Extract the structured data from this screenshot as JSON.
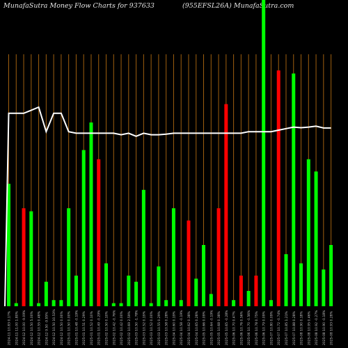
{
  "header": {
    "left_title": "MunafaSutra  Money Flow  Charts for 937633",
    "right_title": "(955EFSL26A) MunafaSutra.com"
  },
  "colors": {
    "background": "#000000",
    "up": "#00ff00",
    "down": "#ff0000",
    "grid": "#a0600f",
    "line": "#ffffff",
    "label": "#c8c8c8"
  },
  "chart_data": {
    "type": "bar",
    "title": "MunafaSutra  Money Flow  Charts for 937633",
    "subtitle": "(955EFSL26A) MunafaSutra.com",
    "ylim": [
      0,
      100
    ],
    "grid": true,
    "categories": [
      "2024-11 10.83 0.17%",
      "2024-11 11.00 1.80%",
      "2024-12 10.00 -9.09%",
      "2024-12 10.50 5.00%",
      "2024-12 10.55 0.48%",
      "2024-12 9.50 -9.95%",
      "2024-12 10.50 10.53%",
      "2024-12 10.50 0.00%",
      "2025-01 10.50 0.00%",
      "2025-01 10.48 -0.19%",
      "2025-01 10.51 0.29%",
      "2025-01 10.52 0.10%",
      "2025-01 10.49 -0.29%",
      "2025-02 10.50 0.10%",
      "2025-02 10.42 -0.76%",
      "2025-02 10.42 0.00%",
      "2025-02 10.69 2.59%",
      "2025-03 10.50 -1.78%",
      "2025-03 10.52 0.19%",
      "2025-03 10.52 0.00%",
      "2025-03 10.55 0.29%",
      "2025-03 10.58 0.28%",
      "2025-04 10.60 0.19%",
      "2025-04 10.58 -0.19%",
      "2025-04 10.62 0.38%",
      "2025-04 10.65 0.28%",
      "2025-05 10.66 0.09%",
      "2025-05 10.64 -0.19%",
      "2025-05 10.68 0.38%",
      "2025-05 10.65 -0.28%",
      "2025-06 10.70 0.47%",
      "2025-06 10.76 0.56%",
      "2025-06 10.70 -0.56%",
      "2025-06 10.78 0.75%",
      "2025-06 10.79 0.09%",
      "2025-07 10.80 0.09%",
      "2025-07 10.72 -0.74%",
      "2025-07 10.85 1.21%",
      "2025-07 10.88 0.28%",
      "2025-08 10.90 0.18%",
      "2025-08 10.95 0.46%",
      "2025-08 10.92 -0.27%",
      "2025-08 10.90 -0.18%",
      "2025-08 10.93 0.28%"
    ],
    "series": [
      {
        "colors": [
          "up",
          "up",
          "down",
          "up",
          "up",
          "up",
          "up",
          "up",
          "up",
          "up",
          "up",
          "up",
          "down",
          "up",
          "up",
          "up",
          "up",
          "up",
          "up",
          "up",
          "up",
          "up",
          "up",
          "up",
          "down",
          "up",
          "up",
          "up",
          "down",
          "down",
          "up",
          "down",
          "up",
          "down",
          "up",
          "up",
          "down",
          "up",
          "up",
          "up",
          "up",
          "up",
          "up",
          "up"
        ],
        "values": [
          40,
          1,
          32,
          31,
          1,
          8,
          2,
          2,
          32,
          10,
          51,
          60,
          48,
          14,
          1,
          1,
          10,
          8,
          38,
          1,
          13,
          2,
          32,
          2,
          28,
          9,
          20,
          4,
          32,
          66,
          2,
          10,
          5,
          10,
          100,
          2,
          77,
          17,
          76,
          14,
          48,
          44,
          12,
          20
        ]
      },
      {
        "type": "line",
        "values": [
          63,
          63,
          63,
          64,
          65,
          57,
          63,
          63,
          57,
          56.5,
          56.5,
          56.5,
          56.5,
          56.5,
          56.5,
          56,
          56.5,
          55.5,
          56.5,
          56,
          56,
          56.2,
          56.5,
          56.5,
          56.5,
          56.5,
          56.5,
          56.5,
          56.5,
          56.5,
          56.5,
          56.5,
          57,
          57,
          57,
          57,
          57.5,
          58,
          58.5,
          58.3,
          58.5,
          58.8,
          58.2,
          58.2
        ]
      }
    ]
  }
}
